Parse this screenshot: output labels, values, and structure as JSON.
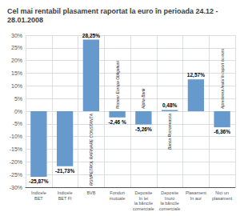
{
  "chart_data": {
    "type": "bar",
    "title": "Cel mai rentabil plasament raportat la euro în perioada 24.12 - 28.01.2008",
    "categories": [
      "Indicele\nBET",
      "Indicele\nBET FI",
      "BVB",
      "Fonduri\nmutuale",
      "Deposite\nîn lei\nla băncile\ncomerciale",
      "Deposite\nînuro\nla băncile\ncomerciale",
      "Plasament\nîn aur",
      "Nici un\nplasament"
    ],
    "values": [
      -25.87,
      -21.73,
      28.25,
      -2.46,
      -5.26,
      0.48,
      12.57,
      -6.36
    ],
    "value_labels": [
      "-25,87%",
      "-21,73%",
      "28,25%",
      "-2,46 %",
      "-5,26%",
      "0,48%",
      "12,57%",
      "-6,36%"
    ],
    "annotations": [
      null,
      null,
      "ROMPETROL RAFINARE CONSTANȚA",
      "Pioneer Europa Obligatiuni",
      "Alpha Bank",
      "Banca Romaneasca",
      null,
      "Aprecierea leului în raport cu euro"
    ],
    "color": "#6699cc",
    "ylim": [
      -30,
      30
    ],
    "yticks": [
      {
        "value": -30,
        "label": "-30%"
      },
      {
        "value": -25,
        "label": "-25%"
      },
      {
        "value": -20,
        "label": "-20%"
      },
      {
        "value": -15,
        "label": "-15%"
      },
      {
        "value": -10,
        "label": "-10%"
      },
      {
        "value": -5,
        "label": "-5%"
      },
      {
        "value": 0,
        "label": "0%"
      },
      {
        "value": 5,
        "label": "5%"
      },
      {
        "value": 10,
        "label": "10%"
      },
      {
        "value": 15,
        "label": "15%"
      },
      {
        "value": 20,
        "label": "20%"
      },
      {
        "value": 25,
        "label": "25%"
      },
      {
        "value": 30,
        "label": "30%"
      }
    ],
    "grid": true,
    "data_labels": true
  }
}
